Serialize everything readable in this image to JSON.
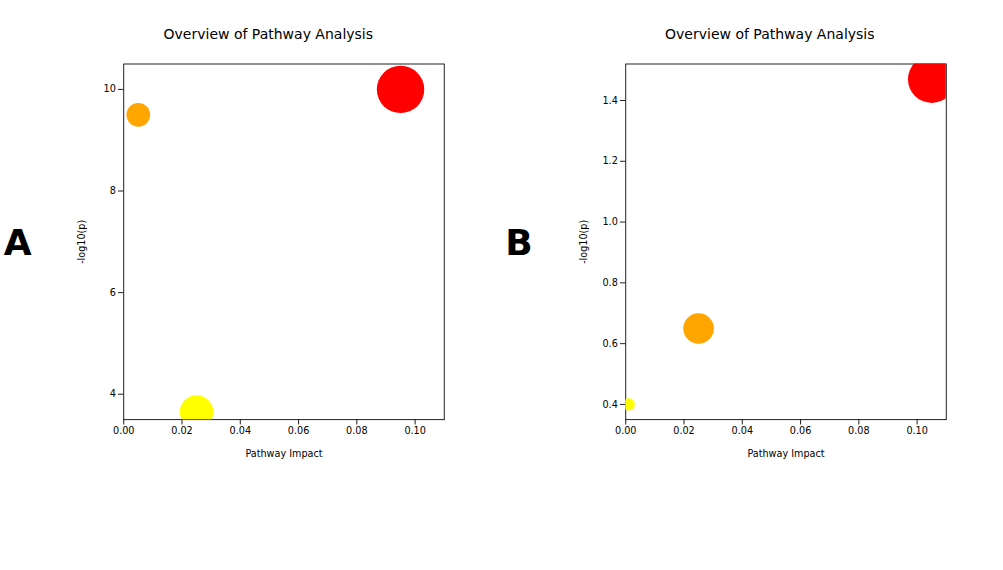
{
  "chart_data": [
    {
      "type": "scatter",
      "title": "Overview of Pathway Analysis",
      "xlabel": "Pathway Impact",
      "ylabel": "-log10(p)",
      "annotations": [
        "A"
      ],
      "x": [
        0.005,
        0.095,
        0.025
      ],
      "values": [
        9.5,
        10.0,
        3.65
      ],
      "sizes": [
        300,
        1200,
        600
      ],
      "colors": [
        "#FFA500",
        "#FF0000",
        "#FFFF00"
      ],
      "xlim": [
        0,
        0.11
      ],
      "ylim": [
        3.5,
        10.5
      ],
      "xticks": [
        {
          "value": 0,
          "label": "0.00"
        },
        0.02,
        0.04,
        0.06,
        0.08,
        {
          "value": 0.1,
          "label": "0.10"
        }
      ],
      "yticks": [
        4,
        6,
        8,
        10
      ]
    },
    {
      "type": "scatter",
      "title": "Overview of Pathway Analysis",
      "xlabel": "Pathway Impact",
      "ylabel": "-log10(p)",
      "annotations": [
        "B"
      ],
      "x": [
        0.001,
        0.025,
        0.105
      ],
      "values": [
        0.4,
        0.65,
        1.47
      ],
      "sizes": [
        80,
        500,
        1200
      ],
      "colors": [
        "#FFFF00",
        "#FFA500",
        "#FF0000"
      ],
      "xlim": [
        0,
        0.11
      ],
      "ylim": [
        0.35,
        1.52
      ],
      "xticks": [
        {
          "value": 0,
          "label": "0.00"
        },
        0.02,
        0.04,
        0.06,
        0.08,
        {
          "value": 0.1,
          "label": "0.10"
        }
      ],
      "yticks": [
        0.4,
        0.6,
        0.8,
        {
          "value": 1.0,
          "label": "1.0"
        },
        1.2,
        1.4
      ]
    }
  ]
}
